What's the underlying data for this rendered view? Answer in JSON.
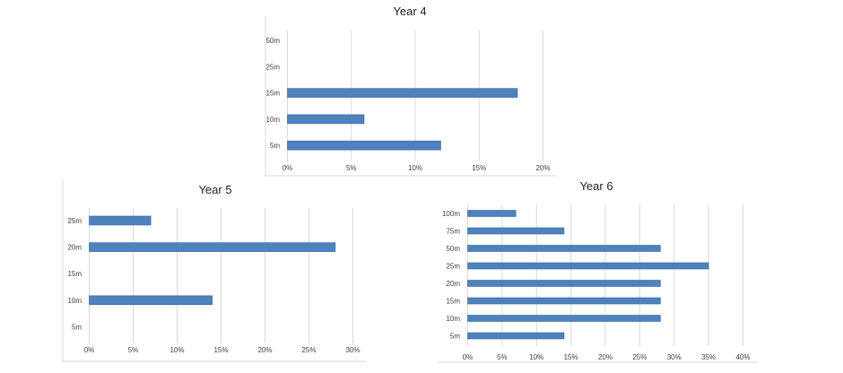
{
  "chart_data": [
    {
      "type": "bar",
      "orientation": "horizontal",
      "title": "Year 4",
      "categories": [
        "5m",
        "10m",
        "15m",
        "25m",
        "50m"
      ],
      "values": [
        0.12,
        0.06,
        0.18,
        0,
        0
      ],
      "xlim": [
        0,
        0.2
      ],
      "xticks": [
        "0%",
        "5%",
        "10%",
        "15%",
        "20%"
      ],
      "grid": true,
      "color": "#4f81bd"
    },
    {
      "type": "bar",
      "orientation": "horizontal",
      "title": "Year 5",
      "categories": [
        "5m",
        "10m",
        "15m",
        "20m",
        "25m"
      ],
      "values": [
        0,
        0.14,
        0,
        0.28,
        0.07
      ],
      "xlim": [
        0,
        0.3
      ],
      "xticks": [
        "0%",
        "5%",
        "10%",
        "15%",
        "20%",
        "25%",
        "30%"
      ],
      "grid": true,
      "color": "#4f81bd"
    },
    {
      "type": "bar",
      "orientation": "horizontal",
      "title": "Year 6",
      "categories": [
        "5m",
        "10m",
        "15m",
        "20m",
        "25m",
        "50m",
        "75m",
        "100m"
      ],
      "values": [
        0.14,
        0.28,
        0.28,
        0.28,
        0.35,
        0.28,
        0.14,
        0.07
      ],
      "xlim": [
        0,
        0.4
      ],
      "xticks": [
        "0%",
        "5%",
        "10%",
        "15%",
        "20%",
        "25%",
        "30%",
        "35%",
        "40%"
      ],
      "grid": true,
      "color": "#4f81bd"
    }
  ]
}
